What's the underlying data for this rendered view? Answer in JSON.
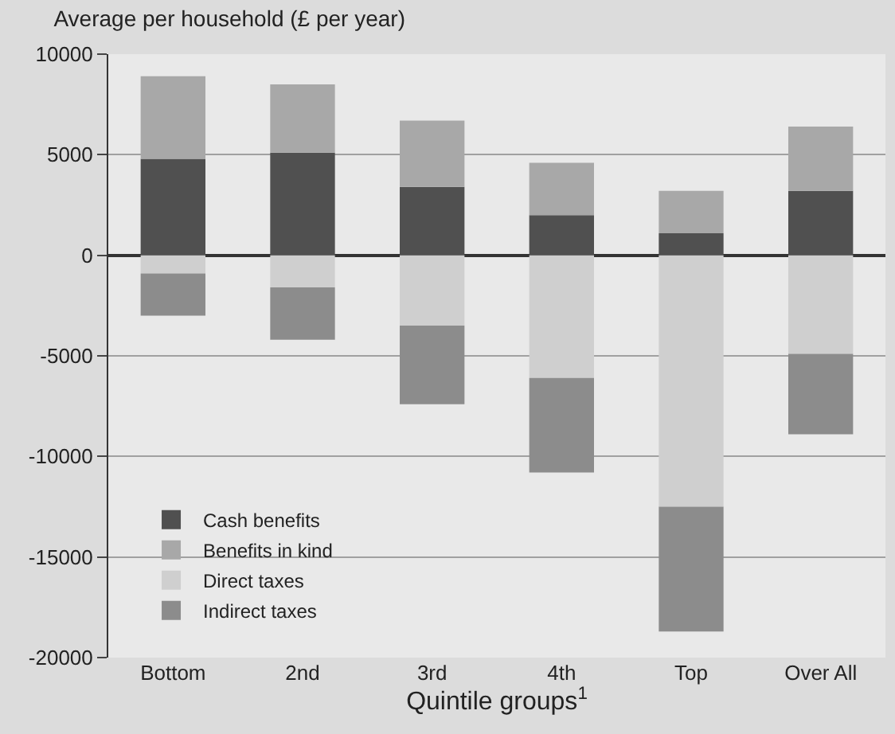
{
  "chart_data": {
    "type": "bar",
    "stacked": true,
    "title": "Average per household (£ per year)",
    "xlabel": "Quintile groups$^{1}$",
    "categories": [
      "Bottom",
      "2nd",
      "3rd",
      "4th",
      "Top",
      "Over All"
    ],
    "series": [
      {
        "name": "Cash benefits",
        "color": "#505050",
        "values": [
          4800,
          5100,
          3400,
          2000,
          1100,
          3200
        ]
      },
      {
        "name": "Benefits in kind",
        "color": "#a8a8a8",
        "values": [
          4100,
          3400,
          3300,
          2600,
          2100,
          3200
        ]
      },
      {
        "name": "Direct taxes",
        "color": "#cfcfcf",
        "values": [
          -900,
          -1600,
          -3500,
          -6100,
          -12500,
          -4900
        ]
      },
      {
        "name": "Indirect taxes",
        "color": "#8c8c8c",
        "values": [
          -2100,
          -2600,
          -3900,
          -4700,
          -6200,
          -4000
        ]
      }
    ],
    "ylim": [
      -20000,
      10000
    ],
    "yticks": [
      -20000,
      -15000,
      -10000,
      -5000,
      0,
      5000,
      10000
    ],
    "grid": "y",
    "legend": "bottom left"
  }
}
